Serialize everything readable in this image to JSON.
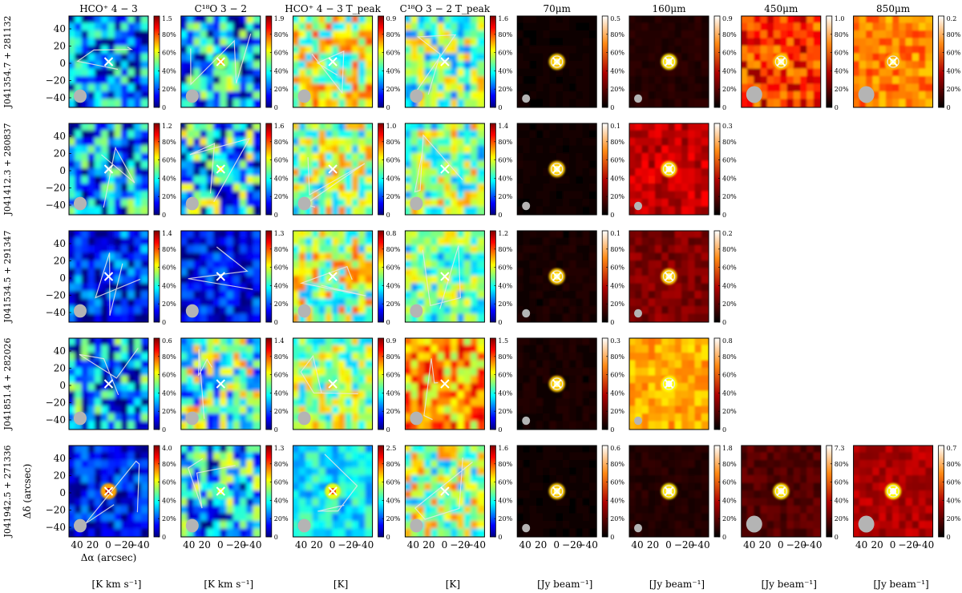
{
  "figure": {
    "columns": [
      {
        "title": "HCO⁺ 4 − 3",
        "unit": "[K km s⁻¹]",
        "cmap": "jet"
      },
      {
        "title": "C¹⁸O 3 − 2",
        "unit": "[K km s⁻¹]",
        "cmap": "jet"
      },
      {
        "title": "HCO⁺ 4 − 3 T_peak",
        "unit": "[K]",
        "cmap": "jet"
      },
      {
        "title": "C¹⁸O 3 − 2 T_peak",
        "unit": "[K]",
        "cmap": "jet"
      },
      {
        "title": "70μm",
        "unit": "[Jy beam⁻¹]",
        "cmap": "heat"
      },
      {
        "title": "160μm",
        "unit": "[Jy beam⁻¹]",
        "cmap": "heat"
      },
      {
        "title": "450μm",
        "unit": "[Jy beam⁻¹]",
        "cmap": "heat"
      },
      {
        "title": "850μm",
        "unit": "[Jy beam⁻¹]",
        "cmap": "heat"
      }
    ],
    "rows": [
      {
        "name": "J041354.7 + 281132",
        "present": [
          true,
          true,
          true,
          true,
          true,
          true,
          true,
          true
        ],
        "vmax": [
          "1.5",
          "1.9",
          "0.9",
          "1.6",
          "0.5",
          "0.9",
          "1.0",
          "0.2"
        ]
      },
      {
        "name": "J041412.3 + 280837",
        "present": [
          true,
          true,
          true,
          true,
          true,
          true,
          false,
          false
        ],
        "vmax": [
          "1.2",
          "1.6",
          "1.0",
          "1.4",
          "0.1",
          "0.3",
          "",
          ""
        ]
      },
      {
        "name": "J041534.5 + 291347",
        "present": [
          true,
          true,
          true,
          true,
          true,
          true,
          false,
          false
        ],
        "vmax": [
          "1.4",
          "1.3",
          "0.8",
          "1.2",
          "0.1",
          "0.2",
          "",
          ""
        ]
      },
      {
        "name": "J041851.4 + 282026",
        "present": [
          true,
          true,
          true,
          true,
          true,
          true,
          false,
          false
        ],
        "vmax": [
          "0.6",
          "1.4",
          "0.9",
          "1.5",
          "0.3",
          "0.8",
          "",
          ""
        ]
      },
      {
        "name": "J041942.5 + 271336",
        "present": [
          true,
          true,
          true,
          true,
          true,
          true,
          true,
          true
        ],
        "vmax": [
          "4.0",
          "1.3",
          "2.5",
          "1.6",
          "0.6",
          "1.8",
          "7.3",
          "0.7"
        ]
      }
    ],
    "colorbar_ticks": [
      "80%",
      "60%",
      "40%",
      "20%",
      "0"
    ],
    "y_ticks": [
      "40",
      "20",
      "0",
      "−20",
      "−40"
    ],
    "x_ticks": [
      "40",
      "20",
      "0",
      "−20",
      "−40"
    ],
    "xlabel": "Δα (arcsec)",
    "ylabel": "Δδ (arcsec)",
    "colors": {
      "marker": "#ffffff",
      "contour": "#e8e8e8",
      "beam": "#b4b4b4"
    }
  }
}
